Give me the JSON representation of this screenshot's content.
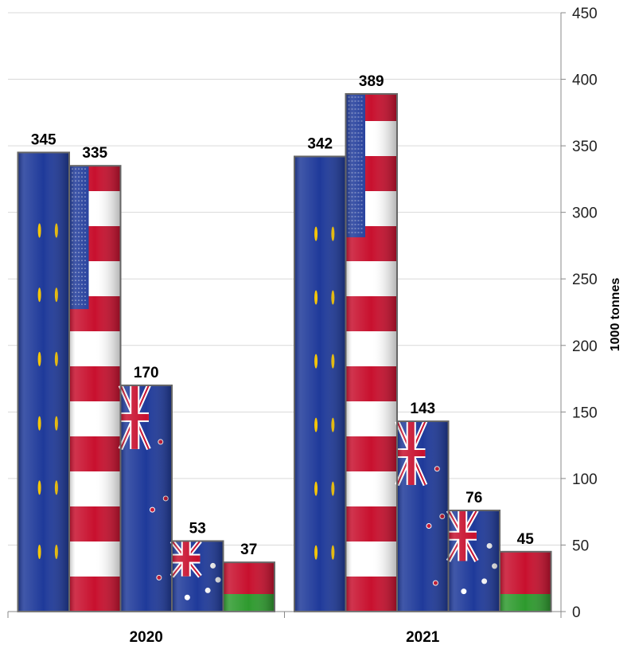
{
  "chart_data": {
    "type": "bar",
    "categories": [
      "2020",
      "2021"
    ],
    "series": [
      {
        "flag": "eu-flag",
        "values": [
          345,
          342
        ]
      },
      {
        "flag": "us-flag",
        "values": [
          335,
          389
        ]
      },
      {
        "flag": "nz-flag",
        "values": [
          170,
          143
        ]
      },
      {
        "flag": "au-flag",
        "values": [
          53,
          76
        ]
      },
      {
        "flag": "by-flag",
        "values": [
          37,
          45
        ]
      }
    ],
    "title": "",
    "xlabel": "",
    "ylabel": "1000 tonnes",
    "ylim": [
      0,
      450
    ],
    "yticks": [
      0,
      50,
      100,
      150,
      200,
      250,
      300,
      350,
      400,
      450
    ],
    "y_axis_side": "right",
    "grid": true,
    "colors": {
      "blue": "#1f3a9a",
      "red": "#c8102e",
      "white": "#ffffff",
      "green": "#2e9a2e",
      "gold": "#f5c400"
    }
  }
}
